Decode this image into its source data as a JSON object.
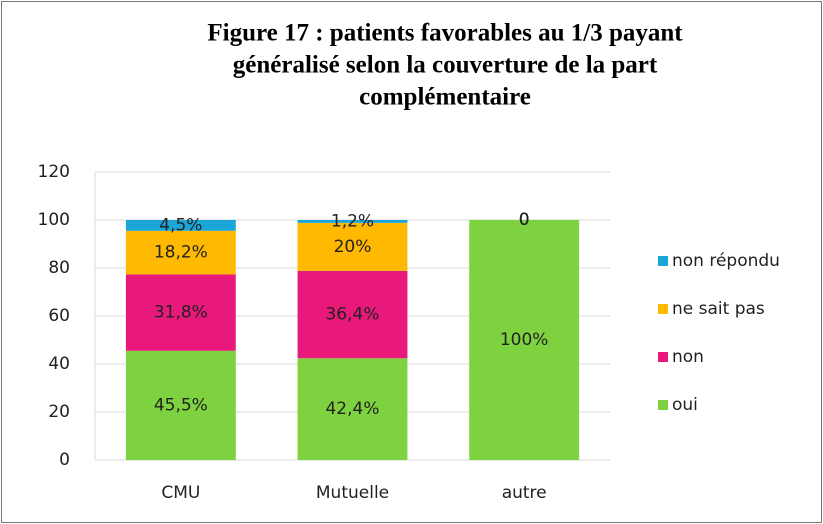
{
  "chart_data": {
    "type": "stacked_bar",
    "title_lines": [
      "Figure 17 :  patients favorables au 1/3 payant",
      "généralisé selon la couverture de la part",
      "complémentaire"
    ],
    "categories": [
      "CMU",
      "Mutuelle",
      "autre"
    ],
    "series": [
      {
        "name": "oui",
        "color": "#7ed13f",
        "values": [
          45.5,
          42.4,
          100
        ],
        "value_labels": [
          "45,5%",
          "42,4%",
          "100%"
        ]
      },
      {
        "name": "non",
        "color": "#e8197a",
        "values": [
          31.8,
          36.4,
          0
        ],
        "value_labels": [
          "31,8%",
          "36,4%",
          "0"
        ]
      },
      {
        "name": "ne sait pas",
        "color": "#ffb900",
        "values": [
          18.2,
          20,
          0
        ],
        "value_labels": [
          "18,2%",
          "20%",
          "0"
        ]
      },
      {
        "name": "non répondu",
        "color": "#1aa7d8",
        "values": [
          4.5,
          1.2,
          0
        ],
        "value_labels": [
          "4,5%",
          "1,2%",
          "0"
        ]
      }
    ],
    "ylim": [
      0,
      120
    ],
    "yticks": [
      0,
      20,
      40,
      60,
      80,
      100,
      120
    ],
    "grid": true,
    "legend": "right"
  }
}
